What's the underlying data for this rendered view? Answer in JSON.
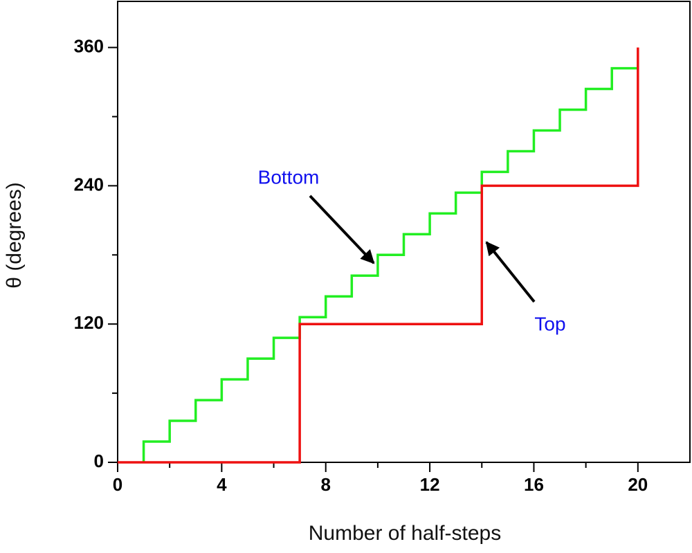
{
  "chart_data": {
    "type": "step",
    "x_label": "Number of half-steps",
    "y_label": "θ (degrees)",
    "xlim": [
      0,
      22
    ],
    "ylim": [
      0,
      400
    ],
    "xticks": [
      0,
      4,
      8,
      12,
      16,
      20
    ],
    "yticks": [
      0,
      120,
      240,
      360
    ],
    "xminorticks": [
      2,
      6,
      10,
      14,
      18
    ],
    "yminorticks": [
      60,
      180,
      300
    ],
    "series": [
      {
        "name": "Bottom",
        "color": "#22ee22",
        "x": [
          1,
          1,
          2,
          3,
          4,
          5,
          6,
          7,
          8,
          9,
          10,
          11,
          12,
          13,
          14,
          15,
          16,
          17,
          18,
          19,
          20
        ],
        "values": [
          0,
          18,
          36,
          54,
          72,
          90,
          108,
          126,
          144,
          162,
          180,
          198,
          216,
          234,
          252,
          270,
          288,
          306,
          324,
          342,
          342
        ]
      },
      {
        "name": "Top",
        "color": "#ee1111",
        "x": [
          0,
          7,
          14,
          20
        ],
        "values": [
          0,
          120,
          240,
          360
        ]
      }
    ]
  }
}
